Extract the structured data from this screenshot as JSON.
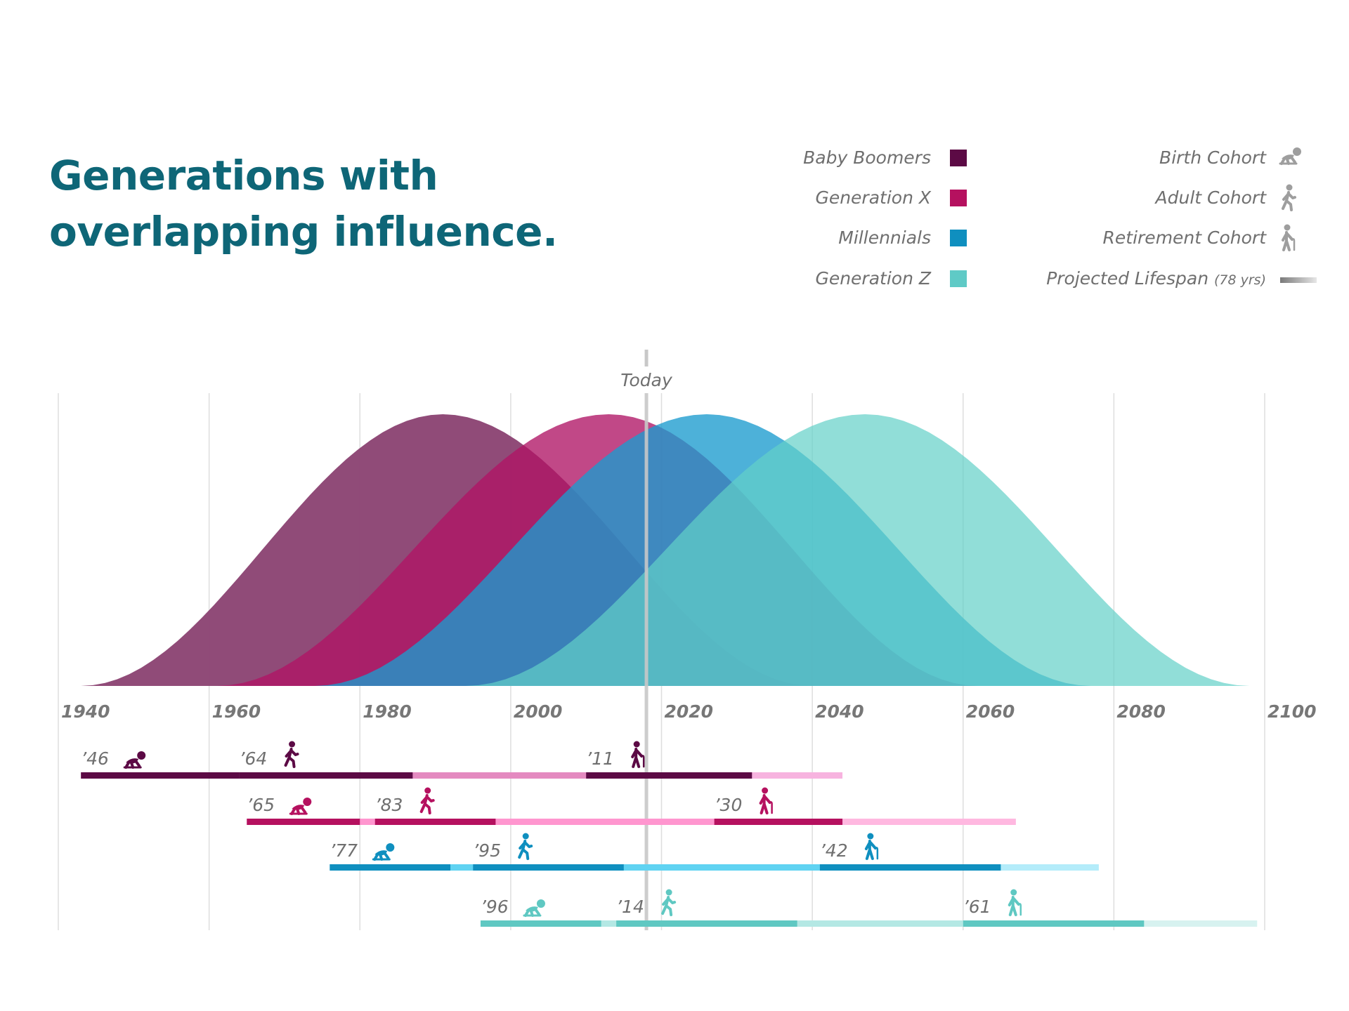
{
  "title": {
    "line1": "Generations with",
    "line2": "overlapping influence."
  },
  "today_label": "Today",
  "legend": {
    "generations": [
      {
        "name": "Baby Boomers",
        "color": "#5c0a45"
      },
      {
        "name": "Generation X",
        "color": "#b5115f"
      },
      {
        "name": "Millennials",
        "color": "#0f8fbf"
      },
      {
        "name": "Generation Z",
        "color": "#5fcac6"
      }
    ],
    "cohorts": [
      {
        "name": "Birth Cohort",
        "icon": "crawling-baby-icon"
      },
      {
        "name": "Adult Cohort",
        "icon": "walking-person-icon"
      },
      {
        "name": "Retirement Cohort",
        "icon": "elderly-cane-icon"
      }
    ],
    "lifespan": {
      "name": "Projected Lifespan",
      "note": "(78 yrs)"
    }
  },
  "colors": {
    "title": "#0e6677",
    "grid": "#dedede",
    "today_line": "#c8c8c8",
    "legend_icon": "#9e9e9e"
  },
  "chart_data": {
    "type": "area",
    "title": "Generations with overlapping influence.",
    "xlim": [
      1940,
      2100
    ],
    "x_ticks": [
      1940,
      1960,
      1980,
      2000,
      2020,
      2040,
      2060,
      2080,
      2100
    ],
    "today": 2018,
    "grid": true,
    "legend_position": "top-right",
    "series": [
      {
        "name": "Baby Boomers",
        "start": 1943,
        "peak": 1991,
        "end": 2040,
        "color": "#8a4171",
        "opacity": 0.95
      },
      {
        "name": "Generation X",
        "start": 1961,
        "peak": 2013,
        "end": 2062,
        "color": "#b01565",
        "opacity": 0.78
      },
      {
        "name": "Millennials",
        "start": 1974,
        "peak": 2026,
        "end": 2077,
        "color": "#1b9bce",
        "opacity": 0.78
      },
      {
        "name": "Generation Z",
        "start": 1994,
        "peak": 2047,
        "end": 2098,
        "color": "#62d0c8",
        "opacity": 0.7
      }
    ],
    "timelines": [
      {
        "generation": "Baby Boomers",
        "color": "#5c0a45",
        "light": "#e48ac0",
        "lighter": "#f7b3df",
        "birth": {
          "label": "’46",
          "start": 1943,
          "end": 1964
        },
        "adult": {
          "label": "’64",
          "start": 1964,
          "end": 1987
        },
        "retirement": {
          "label": "’11",
          "start": 2010,
          "end": 2032
        },
        "lifespan_end": 2044
      },
      {
        "generation": "Generation X",
        "color": "#b5115f",
        "light": "#ff96cf",
        "lighter": "#ffb8e0",
        "birth": {
          "label": "’65",
          "start": 1965,
          "end": 1980
        },
        "adult": {
          "label": "’83",
          "start": 1982,
          "end": 1998
        },
        "retirement": {
          "label": "’30",
          "start": 2027,
          "end": 2044
        },
        "lifespan_end": 2067
      },
      {
        "generation": "Millennials",
        "color": "#0f8fbf",
        "light": "#60d3f2",
        "lighter": "#b4ecfa",
        "birth": {
          "label": "’77",
          "start": 1976,
          "end": 1992
        },
        "adult": {
          "label": "’95",
          "start": 1995,
          "end": 2015
        },
        "retirement": {
          "label": "’42",
          "start": 2041,
          "end": 2065
        },
        "lifespan_end": 2078
      },
      {
        "generation": "Generation Z",
        "color": "#5fc8c2",
        "light": "#b4e8e4",
        "lighter": "#d7f2f0",
        "birth": {
          "label": "’96",
          "start": 1996,
          "end": 2012
        },
        "adult": {
          "label": "’14",
          "start": 2014,
          "end": 2038
        },
        "retirement": {
          "label": "’61",
          "start": 2060,
          "end": 2084
        },
        "lifespan_end": 2099
      }
    ]
  }
}
